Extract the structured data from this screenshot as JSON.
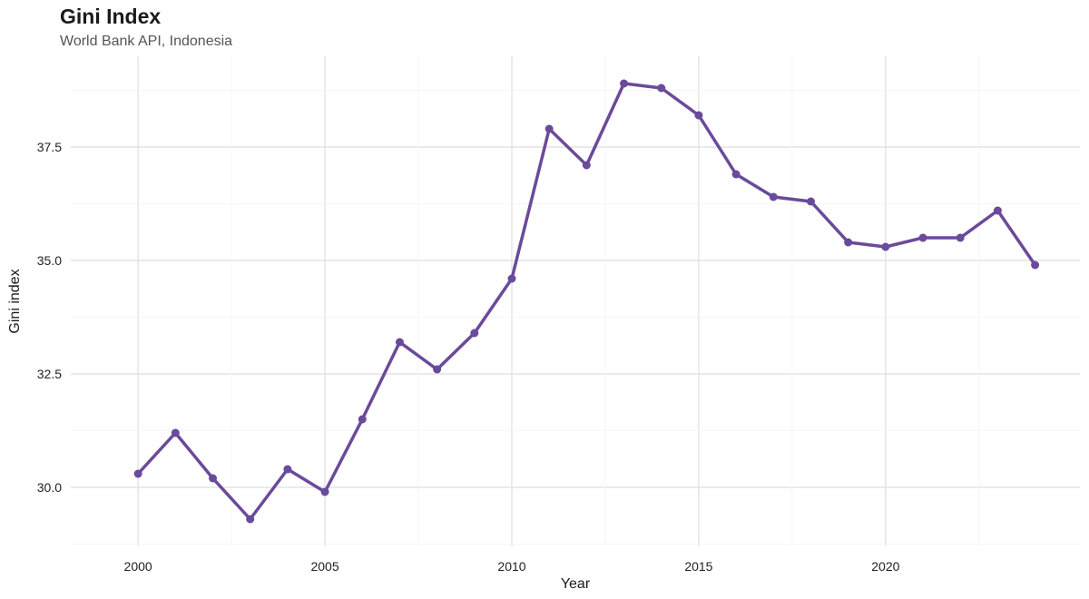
{
  "chart_data": {
    "type": "line",
    "title": "Gini Index",
    "subtitle": "World Bank API, Indonesia",
    "xlabel": "Year",
    "ylabel": "Gini index",
    "x_ticks": [
      "2000",
      "2005",
      "2010",
      "2015",
      "2020"
    ],
    "y_ticks": [
      "30.0",
      "32.5",
      "35.0",
      "37.5"
    ],
    "xlim": [
      1998.2,
      2025.2
    ],
    "ylim": [
      28.7,
      39.5
    ],
    "grid": true,
    "legend": "none",
    "color": "#6a4a9a",
    "series": [
      {
        "x": [
          2000,
          2001,
          2002,
          2003,
          2004,
          2005,
          2006,
          2007,
          2008,
          2009,
          2010,
          2011,
          2012,
          2013,
          2014,
          2015,
          2016,
          2017,
          2018,
          2019,
          2020,
          2021,
          2022,
          2023,
          2024
        ],
        "values": [
          30.3,
          31.2,
          30.2,
          29.3,
          30.4,
          29.9,
          31.5,
          33.2,
          32.6,
          33.4,
          34.6,
          37.9,
          37.1,
          38.9,
          38.8,
          38.2,
          36.9,
          36.4,
          36.3,
          35.4,
          35.3,
          35.5,
          35.5,
          36.1,
          34.9
        ]
      }
    ]
  }
}
